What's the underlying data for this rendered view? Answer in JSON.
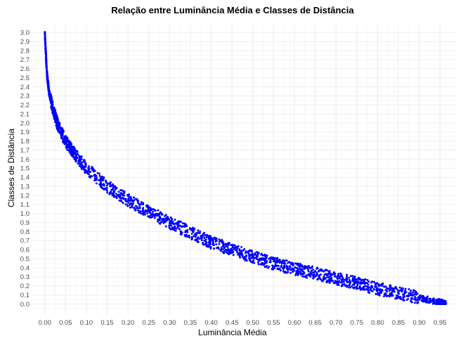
{
  "chart_data": {
    "type": "scatter",
    "title": "Relação entre Luminância Média e Classes de Distância",
    "xlabel": "Luminância Média",
    "ylabel": "Classes de Distância",
    "xlim": [
      -0.03,
      0.99
    ],
    "ylim": [
      -0.12,
      3.08
    ],
    "x_ticks": [
      "0.00",
      "0.05",
      "0.10",
      "0.15",
      "0.20",
      "0.25",
      "0.30",
      "0.35",
      "0.40",
      "0.45",
      "0.50",
      "0.55",
      "0.60",
      "0.65",
      "0.70",
      "0.75",
      "0.80",
      "0.85",
      "0.90",
      "0.95"
    ],
    "y_ticks": [
      "0.0",
      "0.1",
      "0.2",
      "0.3",
      "0.4",
      "0.5",
      "0.6",
      "0.7",
      "0.8",
      "0.9",
      "1.0",
      "1.1",
      "1.2",
      "1.3",
      "1.4",
      "1.5",
      "1.6",
      "1.7",
      "1.8",
      "1.9",
      "2.0",
      "2.1",
      "2.2",
      "2.3",
      "2.4",
      "2.5",
      "2.6",
      "2.7",
      "2.8",
      "2.9",
      "3.0"
    ],
    "grid": true,
    "legend": "none",
    "point_color": "#0000ff",
    "trend": [
      {
        "x": 0.0,
        "y": 3.0
      },
      {
        "x": 0.005,
        "y": 2.55
      },
      {
        "x": 0.01,
        "y": 2.35
      },
      {
        "x": 0.02,
        "y": 2.15
      },
      {
        "x": 0.03,
        "y": 2.0
      },
      {
        "x": 0.05,
        "y": 1.8
      },
      {
        "x": 0.07,
        "y": 1.67
      },
      {
        "x": 0.1,
        "y": 1.5
      },
      {
        "x": 0.15,
        "y": 1.3
      },
      {
        "x": 0.2,
        "y": 1.15
      },
      {
        "x": 0.25,
        "y": 1.02
      },
      {
        "x": 0.3,
        "y": 0.9
      },
      {
        "x": 0.35,
        "y": 0.79
      },
      {
        "x": 0.4,
        "y": 0.68
      },
      {
        "x": 0.45,
        "y": 0.6
      },
      {
        "x": 0.5,
        "y": 0.52
      },
      {
        "x": 0.55,
        "y": 0.45
      },
      {
        "x": 0.6,
        "y": 0.39
      },
      {
        "x": 0.65,
        "y": 0.34
      },
      {
        "x": 0.7,
        "y": 0.28
      },
      {
        "x": 0.75,
        "y": 0.23
      },
      {
        "x": 0.8,
        "y": 0.17
      },
      {
        "x": 0.85,
        "y": 0.12
      },
      {
        "x": 0.9,
        "y": 0.07
      },
      {
        "x": 0.95,
        "y": 0.02
      },
      {
        "x": 0.965,
        "y": 0.0
      }
    ],
    "points_per_segment": 90,
    "vertical_spread": 0.07
  }
}
